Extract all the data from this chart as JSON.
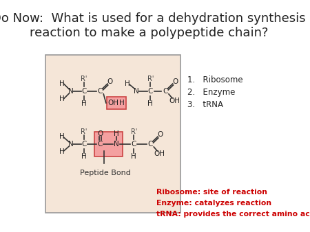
{
  "title": "Do Now:  What is used for a dehydration synthesis\nreaction to make a polypeptide chain?",
  "title_fontsize": 13,
  "bg_color": "#ffffff",
  "box_bg": "#f5e6d8",
  "box_edge": "#999999",
  "list_items": [
    "1.   Ribosome",
    "2.   Enzyme",
    "3.   tRNA"
  ],
  "red_color": "#cc0000",
  "answer_lines": [
    "Ribosome: site of reaction",
    "Enzyme: catalyzes reaction",
    "tRNA: provides the correct amino acid"
  ],
  "highlight_oh_color": "#f4a0a0",
  "highlight_cn_color": "#f4a0a0"
}
